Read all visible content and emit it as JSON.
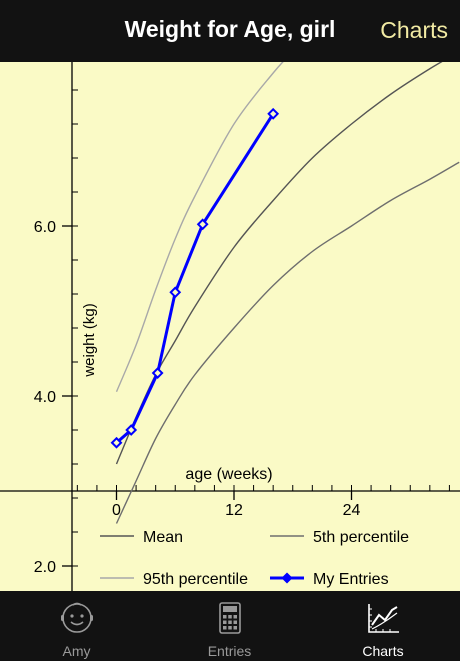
{
  "header": {
    "title": "Weight for Age, girl",
    "action_label": "Charts"
  },
  "chart_data": {
    "type": "line",
    "xlabel": "age (weeks)",
    "ylabel": "weight (kg)",
    "x_ticks": [
      "0",
      "12",
      "24"
    ],
    "y_ticks": [
      "2.0",
      "4.0",
      "6.0"
    ],
    "xlim": [
      -4.5,
      35
    ],
    "ylim": [
      1.8,
      8.0
    ],
    "series": [
      {
        "name": "Mean",
        "color": "#555555",
        "x": [
          0,
          2,
          4,
          6,
          8,
          12,
          16,
          20,
          24,
          28,
          32,
          35
        ],
        "y": [
          3.2,
          3.75,
          4.25,
          4.65,
          5.05,
          5.75,
          6.3,
          6.8,
          7.2,
          7.55,
          7.85,
          8.05
        ]
      },
      {
        "name": "5th percentile",
        "color": "#6e6e6e",
        "x": [
          0,
          2,
          4,
          6,
          8,
          12,
          16,
          20,
          24,
          28,
          32,
          35
        ],
        "y": [
          2.5,
          3.0,
          3.5,
          3.9,
          4.25,
          4.8,
          5.3,
          5.7,
          6.0,
          6.3,
          6.55,
          6.75
        ]
      },
      {
        "name": "95th percentile",
        "color": "#a8a8a8",
        "x": [
          0,
          2,
          4,
          6,
          8,
          12,
          16,
          18
        ],
        "y": [
          4.05,
          4.6,
          5.25,
          5.85,
          6.35,
          7.2,
          7.8,
          8.05
        ]
      },
      {
        "name": "My Entries",
        "color": "#0000ff",
        "markers": "diamond",
        "x": [
          0,
          1.5,
          4.2,
          6,
          8.8,
          16
        ],
        "y": [
          3.45,
          3.6,
          4.27,
          5.22,
          6.02,
          7.32
        ]
      }
    ],
    "legend": [
      "Mean",
      "5th percentile",
      "95th percentile",
      "My Entries"
    ],
    "legend_placement": "bottom"
  },
  "tabs": [
    {
      "label": "Amy",
      "icon": "baby-face-icon",
      "active": false
    },
    {
      "label": "Entries",
      "icon": "calculator-icon",
      "active": false
    },
    {
      "label": "Charts",
      "icon": "chart-icon",
      "active": true
    }
  ]
}
